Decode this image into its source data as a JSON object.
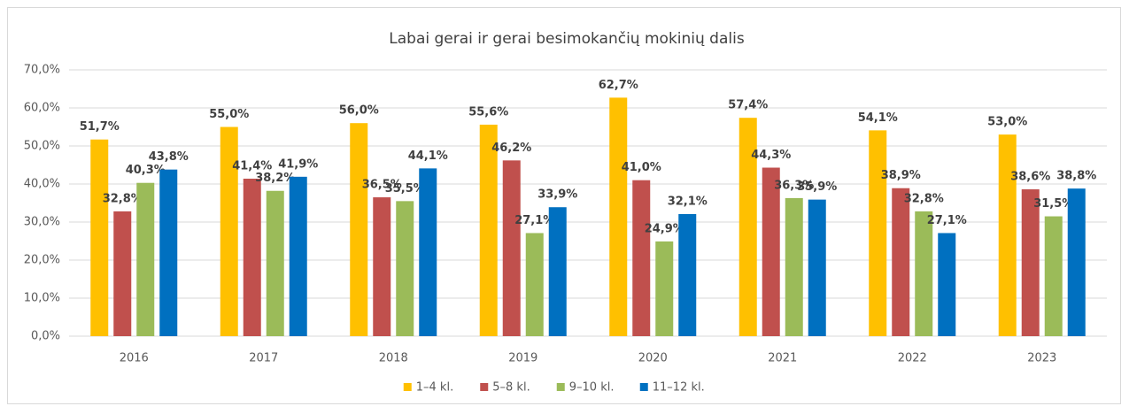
{
  "chart_data": {
    "type": "bar",
    "title": "Labai gerai ir gerai besimokančių mokinių dalis",
    "categories": [
      "2016",
      "2017",
      "2018",
      "2019",
      "2020",
      "2021",
      "2022",
      "2023"
    ],
    "series": [
      {
        "name": "1–4 kl.",
        "color": "#FFC000",
        "values": [
          51.7,
          55.0,
          56.0,
          55.6,
          62.7,
          57.4,
          54.1,
          53.0
        ],
        "value_labels": [
          "51,7%",
          "55,0%",
          "56,0%",
          "55,6%",
          "62,7%",
          "57,4%",
          "54,1%",
          "53,0%"
        ]
      },
      {
        "name": "5–8 kl.",
        "color": "#C0504D",
        "values": [
          32.8,
          41.4,
          36.5,
          46.2,
          41.0,
          44.3,
          38.9,
          38.6
        ],
        "value_labels": [
          "32,8%",
          "41,4%",
          "36,5%",
          "46,2%",
          "41,0%",
          "44,3%",
          "38,9%",
          "38,6%"
        ]
      },
      {
        "name": "9–10 kl.",
        "color": "#9BBB59",
        "values": [
          40.3,
          38.2,
          35.5,
          27.1,
          24.9,
          36.3,
          32.8,
          31.5
        ],
        "value_labels": [
          "40,3%",
          "38,2%",
          "35,5%",
          "27,1%",
          "24,9%",
          "36,3%",
          "32,8%",
          "31,5%"
        ]
      },
      {
        "name": "11–12 kl.",
        "color": "#0070C0",
        "values": [
          43.8,
          41.9,
          44.1,
          33.9,
          32.1,
          35.9,
          27.1,
          38.8
        ],
        "value_labels": [
          "43,8%",
          "41,9%",
          "44,1%",
          "33,9%",
          "32,1%",
          "35,9%",
          "27,1%",
          "38,8%"
        ]
      }
    ],
    "ylim": [
      0,
      70
    ],
    "yticks": [
      {
        "value": 0,
        "label": "0,0%"
      },
      {
        "value": 10,
        "label": "10,0%"
      },
      {
        "value": 20,
        "label": "20,0%"
      },
      {
        "value": 30,
        "label": "30,0%"
      },
      {
        "value": 40,
        "label": "40,0%"
      },
      {
        "value": 50,
        "label": "50,0%"
      },
      {
        "value": 60,
        "label": "60,0%"
      },
      {
        "value": 70,
        "label": "70,0%"
      }
    ],
    "grid": true,
    "legend": "bottom"
  }
}
